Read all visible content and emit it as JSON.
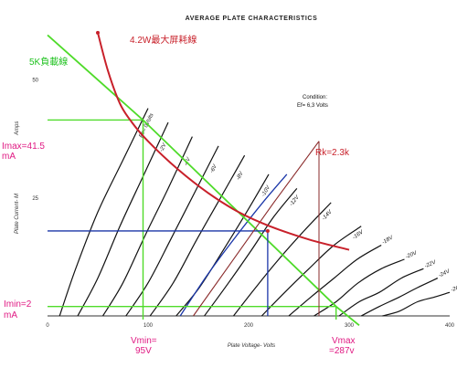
{
  "chart_data": {
    "type": "line",
    "title": "AVERAGE PLATE CHARACTERISTICS",
    "xlabel": "Plate Voltage- Volts",
    "ylabel": "Plate Current- M",
    "ylabel_suffix": "Amps",
    "xlim": [
      0,
      400
    ],
    "ylim": [
      0,
      65
    ],
    "x_ticks": [
      "0",
      "100",
      "200",
      "300",
      "400"
    ],
    "y_ticks": [
      "25",
      "50"
    ],
    "condition": [
      "Condition:",
      "Ef= 6,3 Volts"
    ],
    "grid": false,
    "curves": [
      {
        "label": "Ec= 0Volts",
        "points": [
          [
            12,
            0
          ],
          [
            28,
            10
          ],
          [
            50,
            22
          ],
          [
            75,
            33
          ],
          [
            100,
            44
          ]
        ]
      },
      {
        "label": "-2V",
        "points": [
          [
            30,
            0
          ],
          [
            50,
            8
          ],
          [
            72,
            19
          ],
          [
            96,
            30
          ],
          [
            120,
            41
          ]
        ]
      },
      {
        "label": "-4V",
        "points": [
          [
            55,
            0
          ],
          [
            75,
            7
          ],
          [
            97,
            17
          ],
          [
            120,
            27
          ],
          [
            144,
            38
          ]
        ]
      },
      {
        "label": "-6V",
        "points": [
          [
            78,
            0
          ],
          [
            100,
            7
          ],
          [
            122,
            16
          ],
          [
            146,
            26
          ],
          [
            170,
            36
          ]
        ]
      },
      {
        "label": "-8V",
        "points": [
          [
            102,
            0
          ],
          [
            125,
            7
          ],
          [
            148,
            16
          ],
          [
            172,
            25
          ],
          [
            196,
            34
          ]
        ]
      },
      {
        "label": "-10V",
        "points": [
          [
            128,
            0
          ],
          [
            151,
            6
          ],
          [
            175,
            14
          ],
          [
            198,
            22
          ],
          [
            220,
            30
          ]
        ]
      },
      {
        "label": "-12V",
        "points": [
          [
            156,
            0
          ],
          [
            180,
            7
          ],
          [
            203,
            14
          ],
          [
            225,
            21
          ],
          [
            248,
            27
          ]
        ]
      },
      {
        "label": "-14V",
        "points": [
          [
            185,
            0
          ],
          [
            207,
            6
          ],
          [
            230,
            12
          ],
          [
            255,
            18
          ],
          [
            282,
            24
          ]
        ]
      },
      {
        "label": "-16V",
        "points": [
          [
            213,
            0
          ],
          [
            236,
            5
          ],
          [
            260,
            10
          ],
          [
            285,
            15
          ],
          [
            312,
            19
          ]
        ]
      },
      {
        "label": "-18V",
        "points": [
          [
            240,
            0
          ],
          [
            262,
            4
          ],
          [
            285,
            8
          ],
          [
            308,
            12
          ],
          [
            332,
            15
          ]
        ]
      },
      {
        "label": "-20V",
        "points": [
          [
            265,
            0
          ],
          [
            287,
            3
          ],
          [
            309,
            7
          ],
          [
            332,
            10
          ],
          [
            355,
            12
          ]
        ]
      },
      {
        "label": "-22V",
        "points": [
          [
            290,
            0
          ],
          [
            310,
            3
          ],
          [
            330,
            5
          ],
          [
            352,
            8
          ],
          [
            374,
            10
          ]
        ]
      },
      {
        "label": "-24V",
        "points": [
          [
            312,
            0
          ],
          [
            330,
            2
          ],
          [
            350,
            4
          ],
          [
            368,
            6
          ],
          [
            388,
            8
          ]
        ]
      },
      {
        "label": "-26V",
        "points": [
          [
            333,
            0
          ],
          [
            350,
            1
          ],
          [
            368,
            3
          ],
          [
            385,
            4
          ],
          [
            400,
            5
          ]
        ]
      }
    ],
    "extra_curve_points": [
      [
        132,
        0
      ],
      [
        160,
        9
      ],
      [
        188,
        17
      ],
      [
        214,
        24
      ],
      [
        238,
        30
      ]
    ],
    "max_dissipation": {
      "label": "4.2W最大屏耗線",
      "points": [
        [
          50,
          60
        ],
        [
          60,
          52
        ],
        [
          72,
          45
        ],
        [
          84,
          41
        ],
        [
          100,
          37
        ],
        [
          130,
          31
        ],
        [
          160,
          26
        ],
        [
          190,
          22
        ],
        [
          220,
          19.1
        ],
        [
          260,
          16.2
        ],
        [
          300,
          14
        ]
      ]
    },
    "load_line": {
      "label": "5K負載線",
      "points": [
        [
          0,
          59.5
        ],
        [
          95,
          41.5
        ],
        [
          287,
          2
        ],
        [
          310,
          -2
        ]
      ]
    },
    "cathode_load_line": {
      "label": "Rk=2.3k",
      "points": [
        [
          145,
          0
        ],
        [
          225,
          24
        ],
        [
          270,
          37
        ]
      ]
    },
    "operating_point": {
      "x": 219,
      "y": 18
    },
    "annotations": {
      "imax": {
        "text": [
          "Imax=41.5",
          "mA"
        ],
        "value": 41.5
      },
      "imin": {
        "text": [
          "Imin=2",
          "mA"
        ],
        "value": 2
      },
      "vmin": {
        "text": [
          "Vmin=",
          "95V"
        ],
        "value": 95
      },
      "vmax": {
        "text": [
          "Vmax",
          "=287v"
        ],
        "value": 287
      }
    },
    "colors": {
      "curve": "#111111",
      "max_dissipation": "#c8202a",
      "load_line": "#4fdb2a",
      "cathode_line": "#8a2a2a",
      "operating": "#1a36a8",
      "annotation_green": "#1fc21f",
      "annotation_magenta": "#e01a83"
    }
  }
}
